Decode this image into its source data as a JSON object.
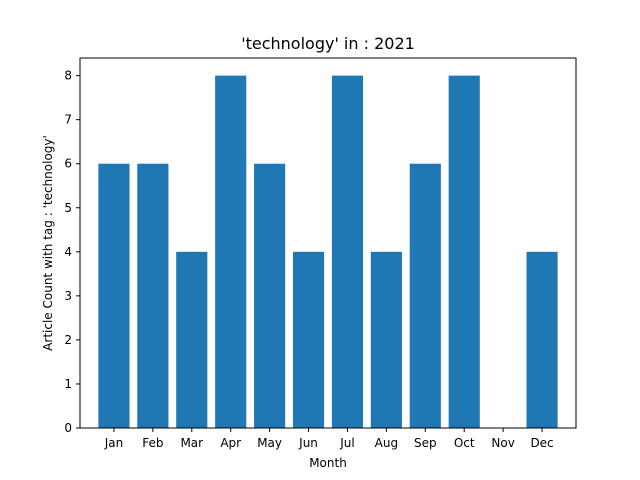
{
  "chart_data": {
    "type": "bar",
    "title": "'technology' in : 2021",
    "xlabel": "Month",
    "ylabel": "Article Count with tag : 'technology'",
    "categories": [
      "Jan",
      "Feb",
      "Mar",
      "Apr",
      "May",
      "Jun",
      "Jul",
      "Aug",
      "Sep",
      "Oct",
      "Nov",
      "Dec"
    ],
    "values": [
      6,
      6,
      4,
      8,
      6,
      4,
      8,
      4,
      6,
      8,
      0,
      4
    ],
    "ylim": [
      0,
      8.4
    ],
    "yticks": [
      0,
      1,
      2,
      3,
      4,
      5,
      6,
      7,
      8
    ],
    "bar_color": "#1f77b4",
    "grid": false,
    "legend": false
  }
}
